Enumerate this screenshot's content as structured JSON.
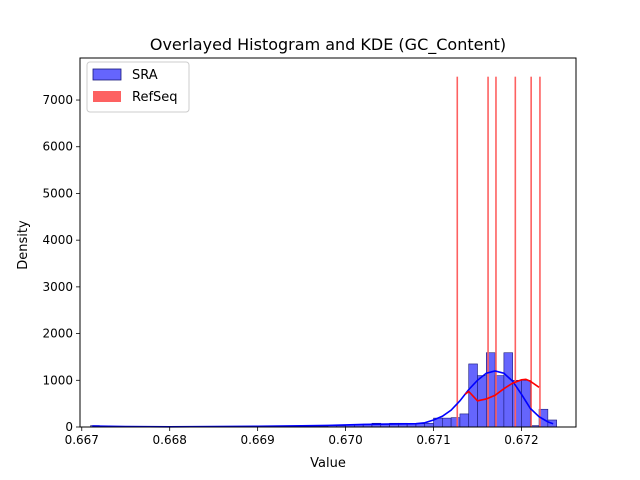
{
  "chart_data": {
    "type": "bar",
    "title": "Overlayed Histogram and KDE (GC_Content)",
    "xlabel": "Value",
    "ylabel": "Density",
    "xlim": [
      0.66698,
      0.67262
    ],
    "ylim": [
      0,
      7900
    ],
    "xticks": [
      0.667,
      0.668,
      0.669,
      0.67,
      0.671,
      0.672
    ],
    "xtick_labels": [
      "0.667",
      "0.668",
      "0.669",
      "0.670",
      "0.671",
      "0.672"
    ],
    "yticks": [
      0,
      1000,
      2000,
      3000,
      4000,
      5000,
      6000,
      7000
    ],
    "ytick_labels": [
      "0",
      "1000",
      "2000",
      "3000",
      "4000",
      "5000",
      "6000",
      "7000"
    ],
    "legend": {
      "placement": "top-left",
      "entries": [
        {
          "label": "SRA",
          "color": "#6565fd"
        },
        {
          "label": "RefSeq",
          "color": "#fd6161"
        }
      ]
    },
    "series": [
      {
        "name": "SRA",
        "kind": "histogram",
        "color": "#6565fd",
        "edge_color": "#1a1a7a",
        "bin_width": 0.0001,
        "bins_start": [
          0.6671,
          0.6672,
          0.6673,
          0.6674,
          0.6675,
          0.6676,
          0.6677,
          0.6678,
          0.6679,
          0.668,
          0.6681,
          0.6682,
          0.6683,
          0.6684,
          0.6685,
          0.6686,
          0.6687,
          0.6688,
          0.6689,
          0.669,
          0.6691,
          0.6692,
          0.6693,
          0.6694,
          0.6695,
          0.6696,
          0.6697,
          0.6698,
          0.6699,
          0.67,
          0.6701,
          0.6702,
          0.6703,
          0.6704,
          0.6705,
          0.6706,
          0.6707,
          0.6708,
          0.6709,
          0.671,
          0.6711,
          0.6712,
          0.6713,
          0.6714,
          0.6715,
          0.6716,
          0.6717,
          0.6718,
          0.6719,
          0.672,
          0.6721,
          0.6722,
          0.6723
        ],
        "values": [
          30,
          10,
          0,
          0,
          0,
          0,
          0,
          0,
          0,
          10,
          0,
          0,
          0,
          0,
          0,
          0,
          0,
          0,
          0,
          0,
          0,
          0,
          0,
          0,
          10,
          20,
          20,
          30,
          30,
          40,
          50,
          60,
          80,
          70,
          80,
          80,
          60,
          70,
          80,
          190,
          190,
          200,
          280,
          1350,
          1100,
          1590,
          1100,
          1590,
          1000,
          1000,
          30,
          380,
          150
        ]
      },
      {
        "name": "SRA",
        "kind": "kde",
        "color": "#0000ff",
        "x": [
          0.66712,
          0.6675,
          0.668,
          0.6685,
          0.669,
          0.6695,
          0.6698,
          0.67,
          0.6702,
          0.6704,
          0.6706,
          0.6708,
          0.6709,
          0.671,
          0.6711,
          0.6712,
          0.6713,
          0.6714,
          0.6715,
          0.6716,
          0.6717,
          0.6718,
          0.6719,
          0.672,
          0.6721,
          0.6722,
          0.6723,
          0.67236
        ],
        "values": [
          20,
          10,
          5,
          10,
          15,
          25,
          35,
          45,
          55,
          60,
          65,
          70,
          90,
          150,
          230,
          360,
          560,
          800,
          1000,
          1150,
          1200,
          1150,
          980,
          700,
          400,
          220,
          110,
          70
        ]
      },
      {
        "name": "RefSeq",
        "kind": "histogram",
        "color": "#fd6161",
        "bars": [
          {
            "x": 0.67127,
            "value": 7500
          },
          {
            "x": 0.67162,
            "value": 7500
          },
          {
            "x": 0.67171,
            "value": 7500
          },
          {
            "x": 0.67193,
            "value": 7500
          },
          {
            "x": 0.67211,
            "value": 7500
          },
          {
            "x": 0.67221,
            "value": 7500
          }
        ]
      },
      {
        "name": "RefSeq",
        "kind": "kde",
        "color": "#ff0000",
        "x": [
          0.67136,
          0.6714,
          0.6715,
          0.6716,
          0.6717,
          0.6718,
          0.6719,
          0.672,
          0.67205,
          0.6721,
          0.6722
        ],
        "values": [
          700,
          760,
          560,
          600,
          680,
          820,
          940,
          1010,
          1020,
          980,
          850
        ]
      }
    ]
  }
}
